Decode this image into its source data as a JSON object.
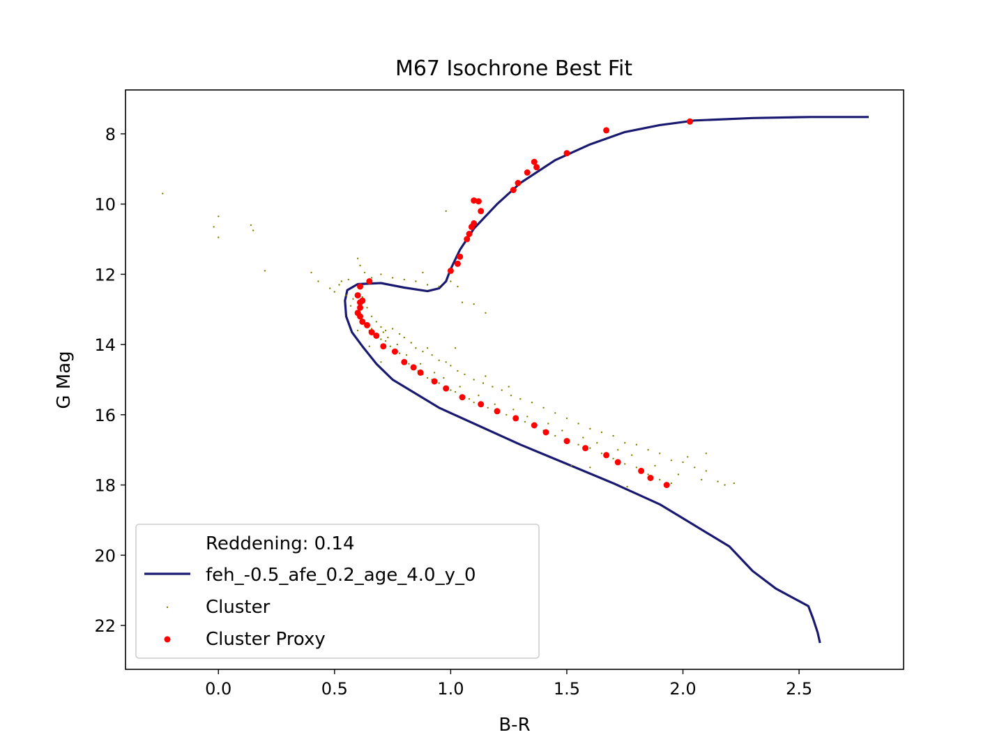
{
  "chart_data": {
    "type": "scatter",
    "title": "M67 Isochrone Best Fit",
    "xlabel": "B-R",
    "ylabel": "G Mag",
    "xlim": [
      -0.4,
      2.95
    ],
    "ylim": [
      23.25,
      6.75
    ],
    "y_inverted": true,
    "x_ticks": [
      0.0,
      0.5,
      1.0,
      1.5,
      2.0,
      2.5
    ],
    "x_tick_labels": [
      "0.0",
      "0.5",
      "1.0",
      "1.5",
      "2.0",
      "2.5"
    ],
    "y_ticks": [
      8,
      10,
      12,
      14,
      16,
      18,
      20,
      22
    ],
    "y_tick_labels": [
      "8",
      "10",
      "12",
      "14",
      "16",
      "18",
      "20",
      "22"
    ],
    "grid": false,
    "legend": {
      "placement": "lower-left",
      "header": "Reddening: 0.14",
      "entries": [
        "feh_-0.5_afe_0.2_age_4.0_y_0",
        "Cluster",
        "Cluster Proxy"
      ]
    },
    "series": [
      {
        "name": "feh_-0.5_afe_0.2_age_4.0_y_0",
        "kind": "line",
        "color": "#191970",
        "points": [
          [
            2.59,
            22.5
          ],
          [
            2.58,
            22.2
          ],
          [
            2.56,
            21.8
          ],
          [
            2.54,
            21.45
          ],
          [
            2.4,
            20.95
          ],
          [
            2.3,
            20.45
          ],
          [
            2.25,
            20.1
          ],
          [
            2.2,
            19.75
          ],
          [
            2.1,
            19.35
          ],
          [
            2.0,
            18.95
          ],
          [
            1.9,
            18.55
          ],
          [
            1.8,
            18.25
          ],
          [
            1.7,
            17.95
          ],
          [
            1.5,
            17.4
          ],
          [
            1.3,
            16.85
          ],
          [
            1.1,
            16.25
          ],
          [
            0.95,
            15.8
          ],
          [
            0.85,
            15.4
          ],
          [
            0.75,
            15.0
          ],
          [
            0.68,
            14.55
          ],
          [
            0.62,
            14.05
          ],
          [
            0.575,
            13.65
          ],
          [
            0.55,
            13.2
          ],
          [
            0.545,
            12.75
          ],
          [
            0.555,
            12.45
          ],
          [
            0.6,
            12.28
          ],
          [
            0.7,
            12.25
          ],
          [
            0.8,
            12.38
          ],
          [
            0.9,
            12.48
          ],
          [
            0.95,
            12.4
          ],
          [
            0.98,
            12.2
          ],
          [
            1.0,
            11.85
          ],
          [
            1.04,
            11.3
          ],
          [
            1.1,
            10.7
          ],
          [
            1.2,
            10.0
          ],
          [
            1.3,
            9.4
          ],
          [
            1.45,
            8.75
          ],
          [
            1.6,
            8.3
          ],
          [
            1.75,
            7.95
          ],
          [
            1.9,
            7.75
          ],
          [
            2.05,
            7.62
          ],
          [
            2.3,
            7.55
          ],
          [
            2.55,
            7.52
          ],
          [
            2.8,
            7.52
          ]
        ]
      },
      {
        "name": "Cluster",
        "kind": "scatter",
        "color": "#808000",
        "marker": "small-point",
        "points": [
          [
            -0.24,
            9.7
          ],
          [
            0.0,
            10.35
          ],
          [
            -0.02,
            10.65
          ],
          [
            0.0,
            10.95
          ],
          [
            0.14,
            10.6
          ],
          [
            0.15,
            10.75
          ],
          [
            0.2,
            11.9
          ],
          [
            0.4,
            11.95
          ],
          [
            0.43,
            12.2
          ],
          [
            0.48,
            12.4
          ],
          [
            0.52,
            12.3
          ],
          [
            0.55,
            12.6
          ],
          [
            0.5,
            12.5
          ],
          [
            0.53,
            12.2
          ],
          [
            0.56,
            12.15
          ],
          [
            0.6,
            11.55
          ],
          [
            0.61,
            11.75
          ],
          [
            0.63,
            11.95
          ],
          [
            0.66,
            12.1
          ],
          [
            0.7,
            12.0
          ],
          [
            0.75,
            12.1
          ],
          [
            0.8,
            12.15
          ],
          [
            0.85,
            12.2
          ],
          [
            0.9,
            12.3
          ],
          [
            0.95,
            12.35
          ],
          [
            1.0,
            12.2
          ],
          [
            1.03,
            12.35
          ],
          [
            0.88,
            11.95
          ],
          [
            0.98,
            10.2
          ],
          [
            1.05,
            12.8
          ],
          [
            1.1,
            12.85
          ],
          [
            1.15,
            13.1
          ],
          [
            0.6,
            12.8
          ],
          [
            0.61,
            13.0
          ],
          [
            0.62,
            13.2
          ],
          [
            0.63,
            13.4
          ],
          [
            0.64,
            13.5
          ],
          [
            0.65,
            13.6
          ],
          [
            0.66,
            13.55
          ],
          [
            0.68,
            13.7
          ],
          [
            0.7,
            13.85
          ],
          [
            0.72,
            13.9
          ],
          [
            0.74,
            14.05
          ],
          [
            0.76,
            14.2
          ],
          [
            0.78,
            14.25
          ],
          [
            0.8,
            14.45
          ],
          [
            0.82,
            14.55
          ],
          [
            0.84,
            14.6
          ],
          [
            0.86,
            14.75
          ],
          [
            0.88,
            14.85
          ],
          [
            0.9,
            14.95
          ],
          [
            0.92,
            15.0
          ],
          [
            0.95,
            15.1
          ],
          [
            0.98,
            15.2
          ],
          [
            1.0,
            15.3
          ],
          [
            1.02,
            15.35
          ],
          [
            1.05,
            15.45
          ],
          [
            1.08,
            15.55
          ],
          [
            1.1,
            15.65
          ],
          [
            1.13,
            15.7
          ],
          [
            1.16,
            15.8
          ],
          [
            1.2,
            15.9
          ],
          [
            1.24,
            16.0
          ],
          [
            1.28,
            16.1
          ],
          [
            1.32,
            16.2
          ],
          [
            1.36,
            16.3
          ],
          [
            1.4,
            16.45
          ],
          [
            1.45,
            16.6
          ],
          [
            1.5,
            16.7
          ],
          [
            1.55,
            16.85
          ],
          [
            1.6,
            16.95
          ],
          [
            1.65,
            17.1
          ],
          [
            1.7,
            17.25
          ],
          [
            1.75,
            17.4
          ],
          [
            1.8,
            17.5
          ],
          [
            1.85,
            17.7
          ],
          [
            1.9,
            17.85
          ],
          [
            1.95,
            17.95
          ],
          [
            0.7,
            13.5
          ],
          [
            0.72,
            13.6
          ],
          [
            0.75,
            13.55
          ],
          [
            0.78,
            13.7
          ],
          [
            0.8,
            13.8
          ],
          [
            0.83,
            13.95
          ],
          [
            0.85,
            14.1
          ],
          [
            0.88,
            14.2
          ],
          [
            0.9,
            14.1
          ],
          [
            0.92,
            14.3
          ],
          [
            0.95,
            14.45
          ],
          [
            0.98,
            14.5
          ],
          [
            1.0,
            14.6
          ],
          [
            1.03,
            14.75
          ],
          [
            1.06,
            14.85
          ],
          [
            1.1,
            15.0
          ],
          [
            1.14,
            15.1
          ],
          [
            1.18,
            15.2
          ],
          [
            1.22,
            15.3
          ],
          [
            1.26,
            15.45
          ],
          [
            1.3,
            15.55
          ],
          [
            1.35,
            15.65
          ],
          [
            1.4,
            15.8
          ],
          [
            1.45,
            15.95
          ],
          [
            1.5,
            16.1
          ],
          [
            1.55,
            16.25
          ],
          [
            1.6,
            16.4
          ],
          [
            1.65,
            16.5
          ],
          [
            1.7,
            16.6
          ],
          [
            1.75,
            16.8
          ],
          [
            1.8,
            16.85
          ],
          [
            1.85,
            17.0
          ],
          [
            1.9,
            17.1
          ],
          [
            1.95,
            17.3
          ],
          [
            2.0,
            17.35
          ],
          [
            2.05,
            17.5
          ],
          [
            2.1,
            17.6
          ],
          [
            2.15,
            17.9
          ],
          [
            2.18,
            18.0
          ],
          [
            2.22,
            17.95
          ],
          [
            2.1,
            17.1
          ],
          [
            2.02,
            17.2
          ],
          [
            0.58,
            12.7
          ],
          [
            0.57,
            12.9
          ],
          [
            0.62,
            12.65
          ],
          [
            0.64,
            12.95
          ],
          [
            0.66,
            13.2
          ],
          [
            0.68,
            13.35
          ],
          [
            0.71,
            13.65
          ],
          [
            0.73,
            13.8
          ],
          [
            0.77,
            14.0
          ],
          [
            0.81,
            14.3
          ],
          [
            0.87,
            14.55
          ],
          [
            0.93,
            14.8
          ],
          [
            0.97,
            14.95
          ],
          [
            1.04,
            15.2
          ],
          [
            1.12,
            15.45
          ],
          [
            1.19,
            15.7
          ],
          [
            1.27,
            15.85
          ],
          [
            1.33,
            16.05
          ],
          [
            1.42,
            16.25
          ],
          [
            1.48,
            16.45
          ],
          [
            1.57,
            16.65
          ],
          [
            1.63,
            16.8
          ],
          [
            1.72,
            17.0
          ],
          [
            1.78,
            17.15
          ],
          [
            1.88,
            17.45
          ],
          [
            1.98,
            17.7
          ],
          [
            2.08,
            17.85
          ],
          [
            1.76,
            18.05
          ],
          [
            1.6,
            17.5
          ],
          [
            1.52,
            17.45
          ],
          [
            0.6,
            13.6
          ],
          [
            0.65,
            14.05
          ],
          [
            0.7,
            14.5
          ],
          [
            1.02,
            14.1
          ],
          [
            1.15,
            14.9
          ],
          [
            1.25,
            15.2
          ]
        ]
      },
      {
        "name": "Cluster Proxy",
        "kind": "scatter",
        "color": "#ff0000",
        "marker": "dot",
        "points": [
          [
            2.03,
            7.65
          ],
          [
            1.67,
            7.9
          ],
          [
            1.5,
            8.55
          ],
          [
            1.36,
            8.8
          ],
          [
            1.37,
            8.95
          ],
          [
            1.33,
            9.1
          ],
          [
            1.29,
            9.4
          ],
          [
            1.27,
            9.6
          ],
          [
            1.1,
            9.9
          ],
          [
            1.12,
            9.92
          ],
          [
            1.13,
            10.2
          ],
          [
            1.1,
            10.55
          ],
          [
            1.09,
            10.65
          ],
          [
            1.08,
            10.85
          ],
          [
            1.07,
            11.0
          ],
          [
            1.04,
            11.5
          ],
          [
            1.03,
            11.7
          ],
          [
            1.0,
            11.9
          ],
          [
            0.65,
            12.2
          ],
          [
            0.61,
            12.35
          ],
          [
            0.6,
            12.6
          ],
          [
            0.61,
            12.8
          ],
          [
            0.62,
            12.75
          ],
          [
            0.61,
            12.95
          ],
          [
            0.6,
            13.1
          ],
          [
            0.61,
            13.2
          ],
          [
            0.62,
            13.35
          ],
          [
            0.64,
            13.45
          ],
          [
            0.66,
            13.65
          ],
          [
            0.68,
            13.75
          ],
          [
            0.71,
            14.05
          ],
          [
            0.76,
            14.2
          ],
          [
            0.8,
            14.5
          ],
          [
            0.84,
            14.65
          ],
          [
            0.87,
            14.8
          ],
          [
            0.93,
            15.05
          ],
          [
            0.98,
            15.25
          ],
          [
            1.05,
            15.5
          ],
          [
            1.13,
            15.7
          ],
          [
            1.2,
            15.9
          ],
          [
            1.28,
            16.1
          ],
          [
            1.36,
            16.3
          ],
          [
            1.41,
            16.5
          ],
          [
            1.5,
            16.75
          ],
          [
            1.58,
            16.95
          ],
          [
            1.67,
            17.15
          ],
          [
            1.72,
            17.35
          ],
          [
            1.82,
            17.6
          ],
          [
            1.86,
            17.8
          ],
          [
            1.93,
            18.0
          ]
        ]
      }
    ]
  }
}
